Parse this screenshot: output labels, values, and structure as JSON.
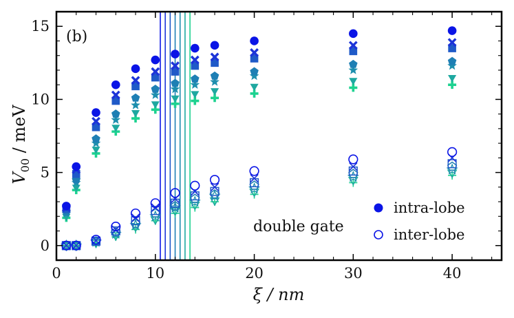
{
  "chart_data": {
    "type": "scatter",
    "title": "",
    "panel_label": "(b)",
    "xlabel": "ξ / nm",
    "ylabel": "V00 / meV",
    "xlim": [
      0,
      45
    ],
    "ylim": [
      -1,
      16
    ],
    "xticks": [
      0,
      10,
      20,
      30,
      40
    ],
    "yticks": [
      0,
      5,
      10,
      15
    ],
    "annotation": "double gate",
    "legend": [
      {
        "label": "intra-lobe",
        "marker": "filled-circle"
      },
      {
        "label": "inter-lobe",
        "marker": "open-circle"
      }
    ],
    "colors": [
      "#0a14e6",
      "#1c34d8",
      "#1f5ac8",
      "#1e7fb4",
      "#1ea8a0",
      "#1dd290"
    ],
    "markers": [
      "circle",
      "x",
      "square",
      "pentagon",
      "star",
      "triangle-down",
      "plus"
    ],
    "x": [
      1,
      2,
      4,
      6,
      8,
      10,
      12,
      14,
      16,
      20,
      30,
      40
    ],
    "vertical_lines": [
      10.5,
      11.0,
      11.5,
      12.0,
      12.5,
      13.0,
      13.5
    ],
    "intra_series": [
      {
        "color": "#0a14e6",
        "marker": "circle",
        "values": [
          2.7,
          5.4,
          9.1,
          11.0,
          12.1,
          12.7,
          13.1,
          13.5,
          13.7,
          14.0,
          14.5,
          14.7
        ]
      },
      {
        "color": "#1c34d8",
        "marker": "x",
        "values": [
          2.6,
          5.2,
          8.5,
          10.3,
          11.3,
          11.9,
          12.3,
          12.7,
          12.9,
          13.2,
          13.7,
          13.9
        ]
      },
      {
        "color": "#1f5ac8",
        "marker": "square",
        "values": [
          2.5,
          4.9,
          8.1,
          9.9,
          10.9,
          11.5,
          11.9,
          12.3,
          12.5,
          12.8,
          13.3,
          13.5
        ]
      },
      {
        "color": "#1e7fb4",
        "marker": "pentagon",
        "values": [
          2.3,
          4.5,
          7.3,
          9.0,
          10.1,
          10.7,
          11.1,
          11.4,
          11.6,
          11.9,
          12.4,
          12.6
        ]
      },
      {
        "color": "#1e8fae",
        "marker": "star",
        "values": [
          2.2,
          4.3,
          7.0,
          8.6,
          9.6,
          10.3,
          10.7,
          11.0,
          11.2,
          11.6,
          12.0,
          12.3
        ]
      },
      {
        "color": "#1ea8a0",
        "marker": "triangle-down",
        "values": [
          2.0,
          4.0,
          6.6,
          8.1,
          9.1,
          9.7,
          10.1,
          10.4,
          10.6,
          10.9,
          11.3,
          11.5
        ]
      },
      {
        "color": "#1dd290",
        "marker": "plus",
        "values": [
          1.9,
          3.8,
          6.3,
          7.8,
          8.7,
          9.3,
          9.7,
          9.9,
          10.1,
          10.4,
          10.8,
          11.0
        ]
      }
    ],
    "inter_series": [
      {
        "color": "#0a14e6",
        "marker": "circle",
        "values": [
          0.0,
          0.0,
          0.4,
          1.3,
          2.2,
          2.9,
          3.6,
          4.1,
          4.5,
          5.1,
          5.9,
          6.4
        ]
      },
      {
        "color": "#1c34d8",
        "marker": "x",
        "values": [
          0.0,
          0.0,
          0.35,
          1.1,
          1.9,
          2.6,
          3.2,
          3.7,
          4.0,
          4.6,
          5.4,
          6.0
        ]
      },
      {
        "color": "#1f5ac8",
        "marker": "square",
        "values": [
          0.0,
          0.0,
          0.3,
          1.0,
          1.7,
          2.4,
          2.9,
          3.4,
          3.7,
          4.3,
          5.1,
          5.6
        ]
      },
      {
        "color": "#1e7fb4",
        "marker": "pentagon",
        "values": [
          0.0,
          0.0,
          0.28,
          0.9,
          1.5,
          2.2,
          2.7,
          3.2,
          3.5,
          4.1,
          4.9,
          5.4
        ]
      },
      {
        "color": "#1e8fae",
        "marker": "star",
        "values": [
          0.0,
          0.0,
          0.25,
          0.8,
          1.4,
          2.0,
          2.6,
          3.0,
          3.4,
          3.9,
          4.7,
          5.2
        ]
      },
      {
        "color": "#1ea8a0",
        "marker": "triangle-down",
        "values": [
          0.0,
          0.0,
          0.2,
          0.7,
          1.3,
          1.8,
          2.4,
          2.8,
          3.1,
          3.7,
          4.5,
          5.0
        ]
      },
      {
        "color": "#1dd290",
        "marker": "plus",
        "values": [
          0.0,
          0.0,
          0.18,
          0.6,
          1.1,
          1.7,
          2.2,
          2.6,
          3.0,
          3.5,
          4.3,
          4.8
        ]
      }
    ],
    "vline_colors": [
      "#0a14e6",
      "#1c34d8",
      "#1f5ac8",
      "#1e7fb4",
      "#1e8fae",
      "#1ea8a0",
      "#1dd290"
    ]
  }
}
